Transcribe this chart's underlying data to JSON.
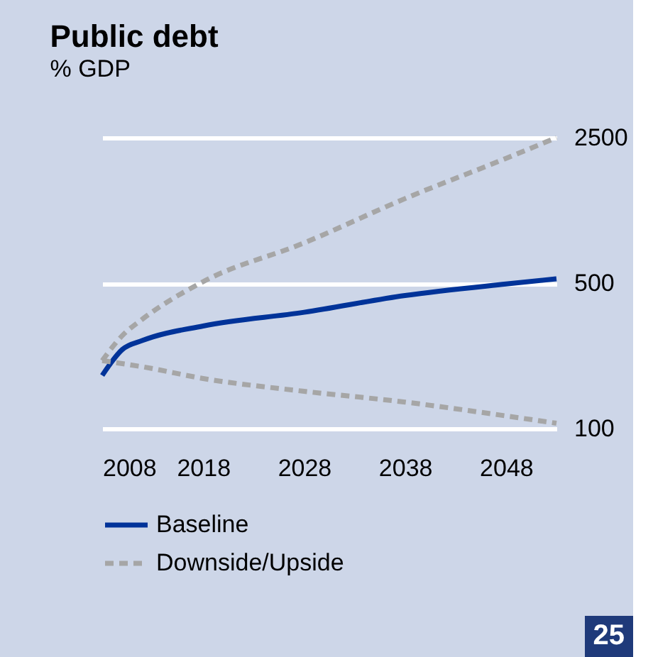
{
  "chart_data": {
    "type": "line",
    "title": "Public debt",
    "subtitle": "% GDP",
    "x": [
      2008,
      2010,
      2012,
      2018,
      2028,
      2038,
      2048,
      2053
    ],
    "series": [
      {
        "name": "Baseline",
        "color": "#003399",
        "line_style": "solid",
        "values": [
          180,
          240,
          265,
          311,
          362,
          436,
          495,
          524
        ]
      },
      {
        "name": "Downside/Upside",
        "color": "#a6a6a6",
        "line_style": "dashed",
        "values": [
          212,
          280,
          336,
          508,
          780,
          1274,
          1987,
          2500
        ]
      },
      {
        "color": "#a6a6a6",
        "line_style": "dashed",
        "values": [
          212,
          205,
          198,
          174,
          151,
          134,
          115,
          106
        ]
      }
    ],
    "xlim": [
      2008,
      2053
    ],
    "xticks": [
      2008,
      2018,
      2028,
      2038,
      2048
    ],
    "ylim": [
      100,
      2500
    ],
    "yticks": [
      100,
      500,
      2500
    ],
    "log": true,
    "grid": "y",
    "legend": "bottom",
    "annotations": [
      "25"
    ]
  }
}
